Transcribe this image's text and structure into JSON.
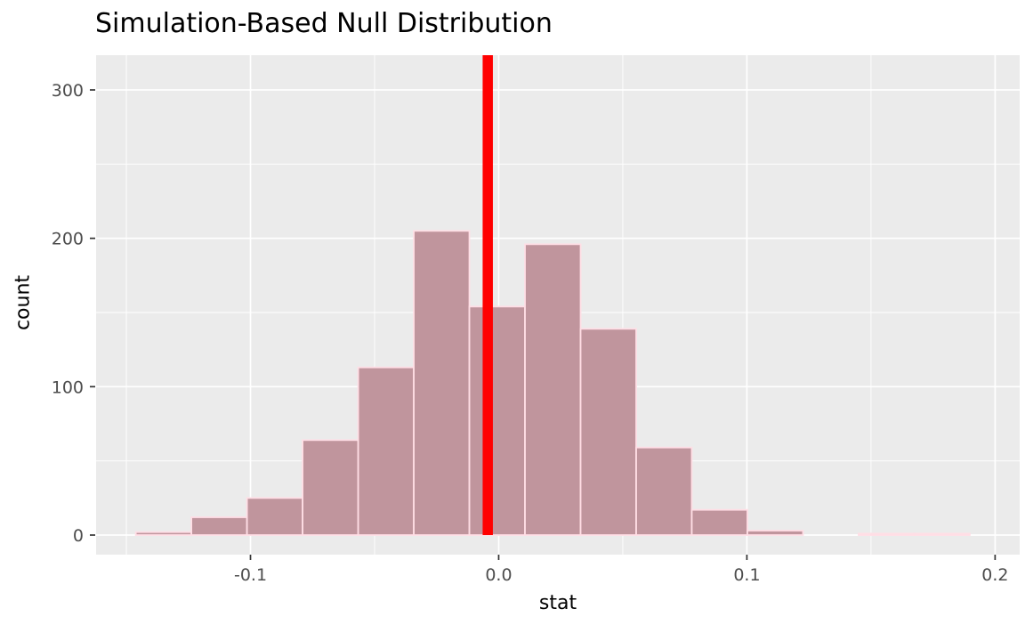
{
  "chart_data": {
    "type": "bar",
    "subtype": "histogram",
    "title": "Simulation-Based Null Distribution",
    "xlabel": "stat",
    "ylabel": "count",
    "x_ticks": {
      "values": [
        -0.1,
        0.0,
        0.1,
        0.2
      ],
      "labels": [
        "-0.1",
        "0.0",
        "0.1",
        "0.2"
      ]
    },
    "x_minor_gridlines": [
      -0.15,
      -0.05,
      0.05,
      0.15
    ],
    "y_ticks": {
      "values": [
        0,
        100,
        200,
        300
      ],
      "labels": [
        "0",
        "100",
        "200",
        "300"
      ]
    },
    "y_minor_gridlines": [
      50,
      150,
      250
    ],
    "bins": {
      "start": -0.1462,
      "width": 0.0224,
      "counts": [
        2,
        12,
        25,
        64,
        113,
        205,
        154,
        196,
        139,
        59,
        17,
        3,
        0,
        1,
        1
      ]
    },
    "observed_stat_line": {
      "value": -0.0044
    },
    "xlim": [
      -0.1622,
      0.2099
    ],
    "ylim": [
      -13.2,
      323.4
    ],
    "grid": "on",
    "legend": "none",
    "colors": {
      "panel_background": "#EBEBEB",
      "gridline": "#FFFFFF",
      "bar_fill": "#C0959D",
      "bar_stroke": "#FFDEE5",
      "observed_line": "#FF0000",
      "tick_mark": "#333333",
      "tick_label": "#4D4D4D",
      "title_text": "#000000"
    }
  }
}
